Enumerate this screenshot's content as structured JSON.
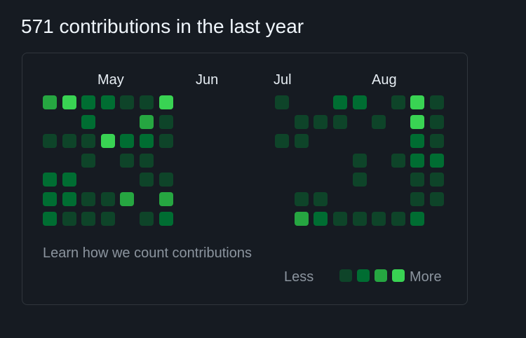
{
  "header": {
    "title": "571 contributions in the last year"
  },
  "calendar": {
    "months": [
      "May",
      "Jun",
      "Jul",
      "Aug"
    ],
    "levels": [
      "#0e4429",
      "#006d32",
      "#26a641",
      "#39d353"
    ],
    "empty_color": "#161b22",
    "cells": [
      {
        "col": 0,
        "row": 0,
        "level": 3
      },
      {
        "col": 1,
        "row": 0,
        "level": 4
      },
      {
        "col": 2,
        "row": 0,
        "level": 2
      },
      {
        "col": 3,
        "row": 0,
        "level": 2
      },
      {
        "col": 4,
        "row": 0,
        "level": 1
      },
      {
        "col": 5,
        "row": 0,
        "level": 1
      },
      {
        "col": 6,
        "row": 0,
        "level": 4
      },
      {
        "col": 2,
        "row": 1,
        "level": 2
      },
      {
        "col": 5,
        "row": 1,
        "level": 3
      },
      {
        "col": 6,
        "row": 1,
        "level": 1
      },
      {
        "col": 0,
        "row": 2,
        "level": 1
      },
      {
        "col": 1,
        "row": 2,
        "level": 1
      },
      {
        "col": 2,
        "row": 2,
        "level": 1
      },
      {
        "col": 3,
        "row": 2,
        "level": 4
      },
      {
        "col": 4,
        "row": 2,
        "level": 2
      },
      {
        "col": 5,
        "row": 2,
        "level": 2
      },
      {
        "col": 6,
        "row": 2,
        "level": 1
      },
      {
        "col": 2,
        "row": 3,
        "level": 1
      },
      {
        "col": 4,
        "row": 3,
        "level": 1
      },
      {
        "col": 5,
        "row": 3,
        "level": 1
      },
      {
        "col": 0,
        "row": 4,
        "level": 2
      },
      {
        "col": 1,
        "row": 4,
        "level": 2
      },
      {
        "col": 5,
        "row": 4,
        "level": 1
      },
      {
        "col": 6,
        "row": 4,
        "level": 1
      },
      {
        "col": 0,
        "row": 5,
        "level": 2
      },
      {
        "col": 1,
        "row": 5,
        "level": 2
      },
      {
        "col": 2,
        "row": 5,
        "level": 1
      },
      {
        "col": 3,
        "row": 5,
        "level": 1
      },
      {
        "col": 4,
        "row": 5,
        "level": 3
      },
      {
        "col": 6,
        "row": 5,
        "level": 3
      },
      {
        "col": 0,
        "row": 6,
        "level": 2
      },
      {
        "col": 1,
        "row": 6,
        "level": 1
      },
      {
        "col": 2,
        "row": 6,
        "level": 1
      },
      {
        "col": 3,
        "row": 6,
        "level": 1
      },
      {
        "col": 5,
        "row": 6,
        "level": 1
      },
      {
        "col": 6,
        "row": 6,
        "level": 2
      },
      {
        "col": 12,
        "row": 0,
        "level": 1
      },
      {
        "col": 15,
        "row": 0,
        "level": 2
      },
      {
        "col": 16,
        "row": 0,
        "level": 2
      },
      {
        "col": 18,
        "row": 0,
        "level": 1
      },
      {
        "col": 19,
        "row": 0,
        "level": 4
      },
      {
        "col": 20,
        "row": 0,
        "level": 1
      },
      {
        "col": 13,
        "row": 1,
        "level": 1
      },
      {
        "col": 14,
        "row": 1,
        "level": 1
      },
      {
        "col": 15,
        "row": 1,
        "level": 1
      },
      {
        "col": 17,
        "row": 1,
        "level": 1
      },
      {
        "col": 19,
        "row": 1,
        "level": 4
      },
      {
        "col": 20,
        "row": 1,
        "level": 1
      },
      {
        "col": 12,
        "row": 2,
        "level": 1
      },
      {
        "col": 13,
        "row": 2,
        "level": 1
      },
      {
        "col": 19,
        "row": 2,
        "level": 2
      },
      {
        "col": 20,
        "row": 2,
        "level": 1
      },
      {
        "col": 16,
        "row": 3,
        "level": 1
      },
      {
        "col": 18,
        "row": 3,
        "level": 1
      },
      {
        "col": 19,
        "row": 3,
        "level": 2
      },
      {
        "col": 20,
        "row": 3,
        "level": 2
      },
      {
        "col": 16,
        "row": 4,
        "level": 1
      },
      {
        "col": 19,
        "row": 4,
        "level": 1
      },
      {
        "col": 20,
        "row": 4,
        "level": 1
      },
      {
        "col": 13,
        "row": 5,
        "level": 1
      },
      {
        "col": 14,
        "row": 5,
        "level": 1
      },
      {
        "col": 19,
        "row": 5,
        "level": 1
      },
      {
        "col": 20,
        "row": 5,
        "level": 1
      },
      {
        "col": 13,
        "row": 6,
        "level": 3
      },
      {
        "col": 14,
        "row": 6,
        "level": 2
      },
      {
        "col": 15,
        "row": 6,
        "level": 1
      },
      {
        "col": 16,
        "row": 6,
        "level": 1
      },
      {
        "col": 17,
        "row": 6,
        "level": 1
      },
      {
        "col": 18,
        "row": 6,
        "level": 1
      },
      {
        "col": 19,
        "row": 6,
        "level": 2
      }
    ]
  },
  "footer": {
    "learn_link": "Learn how we count contributions",
    "legend_less": "Less",
    "legend_more": "More"
  }
}
